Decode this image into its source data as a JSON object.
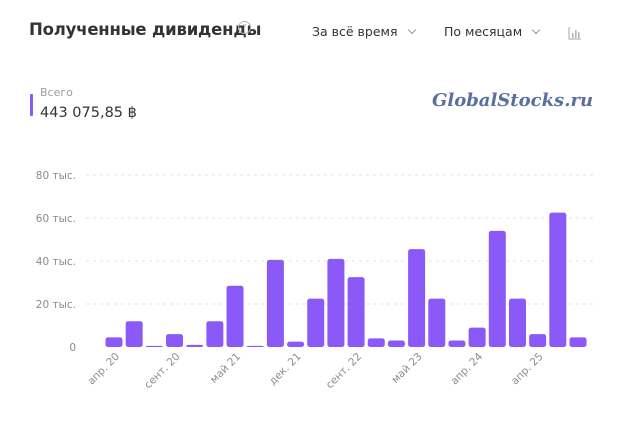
{
  "header": {
    "title": "Полученные дивиденды",
    "help_icon": "?",
    "period_label": "За всё время",
    "grouping_label": "По месяцам",
    "chart_toggle_icon": "bar-chart-icon"
  },
  "summary": {
    "label": "Всего",
    "value": "443 075,85 ฿",
    "accent_color": "#8a59f7"
  },
  "watermark": "GlobalStocks.ru",
  "chart_data": {
    "type": "bar",
    "ylim": [
      0,
      80
    ],
    "y_ticks": [
      {
        "value": 0,
        "label": "0"
      },
      {
        "value": 20,
        "label": "20 тыс."
      },
      {
        "value": 40,
        "label": "40 тыс."
      },
      {
        "value": 60,
        "label": "60 тыс."
      },
      {
        "value": 80,
        "label": "80 тыс."
      }
    ],
    "x_tick_labels": [
      {
        "index": 0,
        "label": "апр. 20"
      },
      {
        "index": 3,
        "label": "сент. 20"
      },
      {
        "index": 6,
        "label": "май 21"
      },
      {
        "index": 9,
        "label": "дек. 21"
      },
      {
        "index": 12,
        "label": "сент. 22"
      },
      {
        "index": 15,
        "label": "май 23"
      },
      {
        "index": 18,
        "label": "апр. 24"
      },
      {
        "index": 21,
        "label": "апр. 25"
      }
    ],
    "values": [
      4.5,
      12,
      0.5,
      6,
      1,
      12,
      28.5,
      0.5,
      40.5,
      2.5,
      22.5,
      41,
      32.5,
      4,
      3,
      45.5,
      22.5,
      3,
      9,
      54,
      22.5,
      6,
      62.5,
      4.5
    ],
    "bar_color": "#8a59f7",
    "grid": true,
    "grid_style": "dashed",
    "unit": "тыс."
  }
}
